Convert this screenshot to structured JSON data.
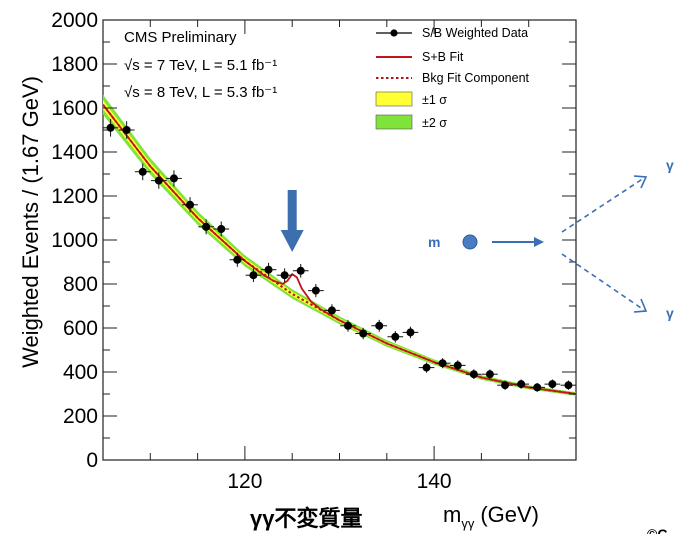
{
  "header": {
    "experiment": "CMS Preliminary",
    "run1": "√s = 7 TeV, L = 5.1 fb⁻¹",
    "run2": "√s = 8 TeV, L = 5.3 fb⁻¹"
  },
  "legend": {
    "data": "S/B Weighted Data",
    "fit": "S+B Fit",
    "bkg": "Bkg Fit Component",
    "band1": "±1 σ",
    "band2": "±2 σ"
  },
  "colors": {
    "fit": "#c0151b",
    "bkg": "#b01414",
    "band1": "#ffff33",
    "band2": "#7fe33a",
    "arrow": "#3b6fae",
    "diagram": "#3a6fb5"
  },
  "diagram": {
    "particle": "m",
    "photon1": "γ",
    "photon2": "γ"
  },
  "caption": "γγ不変質量",
  "copyright": "©C",
  "chart_data": {
    "type": "scatter",
    "ylabel": "Weighted Events / (1.67 GeV)",
    "xlabel": "m_γγ (GeV)",
    "xlabel_main": "m",
    "xlabel_sub": "γγ",
    "xlabel_unit": "(GeV)",
    "xlim": [
      105,
      155
    ],
    "ylim": [
      0,
      2000
    ],
    "x_ticks": [
      120,
      140
    ],
    "y_ticks": [
      0,
      200,
      400,
      600,
      800,
      1000,
      1200,
      1400,
      1600,
      1800,
      2000
    ],
    "x_tick_labels": [
      "120",
      "140"
    ],
    "y_tick_labels": [
      "0",
      "200",
      "400",
      "600",
      "800",
      "1000",
      "1200",
      "1400",
      "1600",
      "1800",
      "2000"
    ],
    "legend_position": "top-right",
    "signal_arrow_x": 125,
    "data": {
      "name": "S/B Weighted Data",
      "x": [
        105.8,
        107.5,
        109.2,
        110.9,
        112.5,
        114.2,
        115.9,
        117.5,
        119.2,
        120.9,
        122.5,
        124.2,
        125.9,
        127.5,
        129.2,
        130.9,
        132.5,
        134.2,
        135.9,
        137.5,
        139.2,
        140.9,
        142.5,
        144.2,
        145.9,
        147.5,
        149.2,
        150.9,
        152.5,
        154.2
      ],
      "y": [
        1510,
        1500,
        1310,
        1270,
        1280,
        1160,
        1060,
        1050,
        910,
        840,
        865,
        840,
        860,
        770,
        680,
        610,
        575,
        610,
        560,
        580,
        420,
        440,
        430,
        390,
        390,
        340,
        345,
        330,
        345,
        340
      ],
      "xerr": 0.83,
      "yerr": [
        40,
        40,
        38,
        37,
        37,
        35,
        34,
        34,
        32,
        31,
        31,
        31,
        31,
        30,
        28,
        27,
        26,
        27,
        26,
        26,
        23,
        23,
        23,
        22,
        22,
        21,
        21,
        20,
        21,
        21
      ]
    },
    "fit": {
      "name": "S+B Fit",
      "x": [
        105,
        110,
        115,
        120,
        122,
        123,
        124,
        124.5,
        125,
        125.5,
        126,
        127,
        128,
        130,
        135,
        140,
        145,
        150,
        155
      ],
      "y": [
        1615,
        1335,
        1100,
        905,
        840,
        815,
        800,
        815,
        845,
        830,
        780,
        720,
        685,
        635,
        530,
        445,
        375,
        330,
        300
      ]
    },
    "background": {
      "name": "Bkg Fit Component",
      "x": [
        105,
        110,
        115,
        120,
        125,
        130,
        135,
        140,
        145,
        150,
        155
      ],
      "y": [
        1615,
        1335,
        1100,
        905,
        755,
        635,
        530,
        445,
        375,
        330,
        300
      ]
    }
  }
}
